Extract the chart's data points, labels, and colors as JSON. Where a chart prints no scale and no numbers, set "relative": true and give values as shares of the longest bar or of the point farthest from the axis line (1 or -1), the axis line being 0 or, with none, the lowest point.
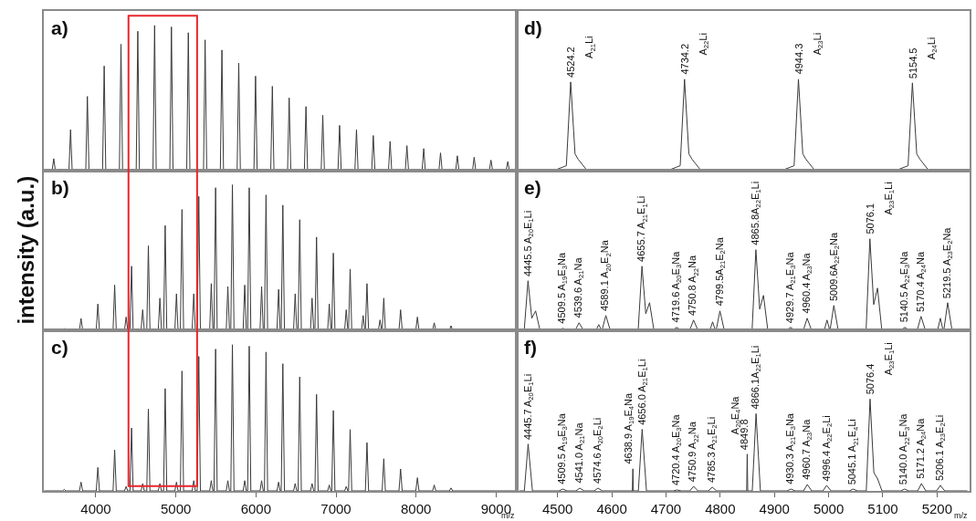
{
  "chart_data": [
    {
      "type": "line",
      "relative": true,
      "xlim": [
        3350,
        9260
      ],
      "xticks": [
        4000,
        5000,
        6000,
        7000,
        8000,
        9000
      ],
      "tick_labels": false,
      "annotations": [
        "a)"
      ],
      "x": [
        3360,
        3454,
        3474,
        3494,
        3664,
        3684,
        3704,
        3874,
        3894,
        3914,
        4084,
        4104,
        4124,
        4294,
        4314,
        4334,
        4504,
        4524,
        4544,
        4714,
        4734,
        4754,
        4924,
        4944,
        4964,
        5135,
        5155,
        5175,
        5345,
        5365,
        5385,
        5555,
        5575,
        5595,
        5765,
        5785,
        5805,
        5975,
        5995,
        6015,
        6185,
        6205,
        6225,
        6395,
        6415,
        6435,
        6605,
        6625,
        6645,
        6815,
        6835,
        6855,
        7025,
        7045,
        7065,
        7236,
        7256,
        7276,
        7446,
        7466,
        7486,
        7656,
        7676,
        7696,
        7866,
        7886,
        7906,
        8076,
        8096,
        8116,
        8286,
        8306,
        8326,
        8496,
        8516,
        8536,
        8706,
        8726,
        8746,
        8916,
        8936,
        8956,
        9126,
        9146,
        9166,
        9250
      ],
      "series": [
        {
          "color": "#3a3a3a",
          "values": [
            0,
            0,
            0.08,
            0,
            0,
            0.28,
            0,
            0,
            0.51,
            0,
            0,
            0.72,
            0,
            0,
            0.87,
            0,
            0,
            0.96,
            0,
            0,
            1,
            0,
            0,
            0.99,
            0,
            0,
            0.95,
            0,
            0,
            0.9,
            0,
            0,
            0.83,
            0,
            0,
            0.74,
            0,
            0,
            0.65,
            0,
            0,
            0.58,
            0,
            0,
            0.5,
            0,
            0,
            0.44,
            0,
            0,
            0.38,
            0,
            0,
            0.31,
            0,
            0,
            0.28,
            0,
            0,
            0.24,
            0,
            0,
            0.2,
            0,
            0,
            0.17,
            0,
            0,
            0.15,
            0,
            0,
            0.12,
            0,
            0,
            0.1,
            0,
            0,
            0.09,
            0,
            0,
            0.07,
            0,
            0,
            0.06,
            0,
            0
          ]
        }
      ]
    },
    {
      "type": "line",
      "relative": true,
      "xlim": [
        3350,
        9260
      ],
      "xticks": [
        4000,
        5000,
        6000,
        7000,
        8000,
        9000
      ],
      "tick_labels": false,
      "ylabel": "intensity (a.u.)",
      "annotations": [
        "b)"
      ],
      "x": [
        3360,
        3585,
        3605,
        3625,
        3795,
        3815,
        3835,
        4005,
        4025,
        4045,
        4215,
        4235,
        4255,
        4358,
        4378,
        4398,
        4426,
        4446,
        4466,
        4565,
        4585,
        4605,
        4636,
        4656,
        4676,
        4780,
        4800,
        4820,
        4846,
        4866,
        4886,
        4987,
        5007,
        5027,
        5056,
        5076,
        5096,
        5203,
        5223,
        5243,
        5266,
        5286,
        5306,
        5422,
        5442,
        5462,
        5476,
        5496,
        5516,
        5629,
        5649,
        5669,
        5686,
        5706,
        5726,
        5840,
        5860,
        5880,
        5896,
        5916,
        5936,
        6051,
        6071,
        6091,
        6106,
        6126,
        6146,
        6263,
        6283,
        6303,
        6316,
        6336,
        6356,
        6470,
        6490,
        6510,
        6527,
        6547,
        6567,
        6681,
        6701,
        6721,
        6737,
        6757,
        6777,
        6896,
        6916,
        6936,
        6947,
        6967,
        6987,
        7108,
        7128,
        7148,
        7157,
        7177,
        7197,
        7319,
        7339,
        7359,
        7367,
        7387,
        7407,
        7530,
        7550,
        7570,
        7577,
        7597,
        7617,
        7787,
        7807,
        7827,
        7997,
        8017,
        8037,
        8207,
        8227,
        8247,
        8417,
        8437,
        8457,
        9250
      ],
      "series": [
        {
          "color": "#3a3a3a",
          "values": [
            0,
            0,
            0.01,
            0,
            0,
            0.08,
            0,
            0,
            0.18,
            0,
            0,
            0.31,
            0,
            0,
            0.09,
            0,
            0,
            0.44,
            0,
            0,
            0.14,
            0,
            0,
            0.58,
            0,
            0,
            0.22,
            0,
            0,
            0.72,
            0,
            0,
            0.25,
            0,
            0,
            0.83,
            0,
            0,
            0.25,
            0,
            0,
            0.92,
            0,
            0,
            0.32,
            0,
            0,
            0.98,
            0,
            0,
            0.3,
            0,
            0,
            1,
            0,
            0,
            0.31,
            0,
            0,
            0.98,
            0,
            0,
            0.3,
            0,
            0,
            0.93,
            0,
            0,
            0.28,
            0,
            0,
            0.86,
            0,
            0,
            0.25,
            0,
            0,
            0.76,
            0,
            0,
            0.22,
            0,
            0,
            0.64,
            0,
            0,
            0.18,
            0,
            0,
            0.53,
            0,
            0,
            0.14,
            0,
            0,
            0.42,
            0,
            0,
            0.1,
            0,
            0,
            0.32,
            0,
            0,
            0.07,
            0,
            0,
            0.22,
            0,
            0,
            0.14,
            0,
            0,
            0.09,
            0,
            0,
            0.05,
            0,
            0,
            0.03,
            0,
            0
          ]
        }
      ]
    },
    {
      "type": "line",
      "relative": true,
      "xlim": [
        3350,
        9260
      ],
      "xticks": [
        4000,
        5000,
        6000,
        7000,
        8000,
        9000
      ],
      "tick_labels": "x",
      "xlabel": "m/z",
      "annotations": [
        "c)"
      ],
      "x": [
        3360,
        3585,
        3605,
        3625,
        3795,
        3815,
        3835,
        4005,
        4025,
        4045,
        4215,
        4235,
        4255,
        4358,
        4378,
        4398,
        4426,
        4446,
        4466,
        4565,
        4585,
        4605,
        4636,
        4656,
        4676,
        4780,
        4800,
        4820,
        4846,
        4866,
        4886,
        4987,
        5007,
        5027,
        5056,
        5076,
        5096,
        5203,
        5223,
        5243,
        5266,
        5286,
        5306,
        5422,
        5442,
        5462,
        5476,
        5496,
        5516,
        5629,
        5649,
        5669,
        5686,
        5706,
        5726,
        5840,
        5860,
        5880,
        5896,
        5916,
        5936,
        6051,
        6071,
        6091,
        6106,
        6126,
        6146,
        6263,
        6283,
        6303,
        6316,
        6336,
        6356,
        6470,
        6490,
        6510,
        6527,
        6547,
        6567,
        6681,
        6701,
        6721,
        6737,
        6757,
        6777,
        6896,
        6916,
        6936,
        6947,
        6967,
        6987,
        7108,
        7128,
        7148,
        7157,
        7177,
        7197,
        7367,
        7387,
        7407,
        7577,
        7597,
        7617,
        7787,
        7807,
        7827,
        7997,
        8017,
        8037,
        8207,
        8227,
        8247,
        8417,
        8437,
        8457,
        9250
      ],
      "series": [
        {
          "color": "#3a3a3a",
          "values": [
            0,
            0,
            0.01,
            0,
            0,
            0.06,
            0,
            0,
            0.16,
            0,
            0,
            0.28,
            0,
            0,
            0.03,
            0,
            0,
            0.43,
            0,
            0,
            0.05,
            0,
            0,
            0.56,
            0,
            0,
            0.05,
            0,
            0,
            0.7,
            0,
            0,
            0.06,
            0,
            0,
            0.82,
            0,
            0,
            0.07,
            0,
            0,
            0.92,
            0,
            0,
            0.07,
            0,
            0,
            0.97,
            0,
            0,
            0.07,
            0,
            0,
            1,
            0,
            0,
            0.07,
            0,
            0,
            0.99,
            0,
            0,
            0.07,
            0,
            0,
            0.95,
            0,
            0,
            0.06,
            0,
            0,
            0.87,
            0,
            0,
            0.05,
            0,
            0,
            0.78,
            0,
            0,
            0.05,
            0,
            0,
            0.66,
            0,
            0,
            0.04,
            0,
            0,
            0.55,
            0,
            0,
            0.03,
            0,
            0,
            0.42,
            0,
            0,
            0.33,
            0,
            0,
            0.22,
            0,
            0,
            0.15,
            0,
            0,
            0.09,
            0,
            0,
            0.04,
            0,
            0,
            0.02,
            0,
            0
          ]
        }
      ]
    },
    {
      "type": "line",
      "relative": true,
      "xlim": [
        4425,
        5260
      ],
      "xticks": [
        4500,
        4600,
        4700,
        4800,
        4900,
        5000,
        5100,
        5200
      ],
      "tick_labels": false,
      "annotations": [
        "d)",
        {
          "text": "4524.2",
          "x": 4524.2,
          "y": 0.97
        },
        {
          "text": "A$_{21}$Li",
          "x": 4524.2,
          "y": 0.97
        },
        {
          "text": "4734.2",
          "x": 4734.2,
          "y": 1
        },
        {
          "text": "A$_{22}$Li",
          "x": 4734.2,
          "y": 1
        },
        {
          "text": "4944.3",
          "x": 4944.3,
          "y": 1
        },
        {
          "text": "A$_{23}$Li",
          "x": 4944.3,
          "y": 1
        },
        {
          "text": "5154.5",
          "x": 5154.5,
          "y": 0.96
        },
        {
          "text": "A$_{24}$Li",
          "x": 5154.5,
          "y": 0.96
        }
      ],
      "x": [
        4430,
        4494.2,
        4516.2,
        4524.2,
        4532.2,
        4538.2,
        4554.2,
        4704.2,
        4726.2,
        4734.2,
        4742.2,
        4748.2,
        4764.2,
        4914.3,
        4936.3,
        4944.3,
        4952.3,
        4958.3,
        4974.3,
        5124.5,
        5146.5,
        5154.5,
        5162.5,
        5168.5,
        5184.5,
        5255
      ],
      "series": [
        {
          "color": "#3a3a3a",
          "values": [
            0,
            0,
            0.05,
            0.97,
            0.18,
            0.12,
            0,
            0,
            0.05,
            1,
            0.18,
            0.12,
            0,
            0,
            0.05,
            1,
            0.18,
            0.12,
            0,
            0,
            0.05,
            0.96,
            0.18,
            0.12,
            0,
            0
          ]
        }
      ]
    },
    {
      "type": "line",
      "relative": true,
      "xlim": [
        4425,
        5260
      ],
      "xticks": [
        4500,
        4600,
        4700,
        4800,
        4900,
        5000,
        5100,
        5200
      ],
      "tick_labels": false,
      "annotations": [
        "e)",
        {
          "text": "4445.5 A$_{20}$E$_{1}$Li",
          "x": 4445.5,
          "y": 0.54
        },
        {
          "text": "4509.5 A$_{19}$E$_{3}$Na",
          "x": 4509.5,
          "y": 0.02
        },
        {
          "text": "4539.6 A$_{21}$Na",
          "x": 4539.6,
          "y": 0.08
        },
        {
          "text": "4589.1 A$_{20}$E$_{2}$Na",
          "x": 4589.1,
          "y": 0.16
        },
        {
          "text": "4655.7 A$_{21}$E$_{1}$Li",
          "x": 4655.7,
          "y": 0.7
        },
        {
          "text": "4719.6 A$_{20}$E$_{3}$Na",
          "x": 4719.6,
          "y": 0.03
        },
        {
          "text": "4750.8 A$_{22}$Na",
          "x": 4750.8,
          "y": 0.11
        },
        {
          "text": "4799.5A$_{21}$E$_{2}$Na",
          "x": 4799.5,
          "y": 0.21
        },
        {
          "text": "4865.8A$_{22}$E$_{1}$Li",
          "x": 4865.8,
          "y": 0.88
        },
        {
          "text": "4929.7 A$_{21}$E$_{3}$Na",
          "x": 4929.7,
          "y": 0.03
        },
        {
          "text": "4960.4 A$_{23}$Na",
          "x": 4960.4,
          "y": 0.13
        },
        {
          "text": "5009.6A$_{22}$E$_{2}$Na",
          "x": 5009.6,
          "y": 0.27
        },
        {
          "text": "5076.1",
          "x": 5076.1,
          "y": 1
        },
        {
          "text": "A$_{23}$E$_{1}$Li",
          "x": 5076.1,
          "y": 1
        },
        {
          "text": "5140.5 A$_{22}$E$_{3}$Na",
          "x": 5140.5,
          "y": 0.03
        },
        {
          "text": "5170.4 A$_{24}$Na",
          "x": 5170.4,
          "y": 0.15
        },
        {
          "text": "5219.5 A$_{23}$E$_{2}$Na",
          "x": 5219.5,
          "y": 0.3
        }
      ],
      "x": [
        4430,
        4438.5,
        4445.5,
        4452.5,
        4459.5,
        4467.5,
        4503.5,
        4509.5,
        4517.5,
        4532.6,
        4539.6,
        4547.6,
        4571,
        4576,
        4581,
        4582.1,
        4589.1,
        4597.1,
        4648.7,
        4655.7,
        4662.7,
        4669.7,
        4677.7,
        4712.6,
        4719.6,
        4727.6,
        4743.8,
        4750.8,
        4758.8,
        4781,
        4786,
        4791,
        4792.5,
        4799.5,
        4807.5,
        4858.8,
        4865.8,
        4872.8,
        4879.8,
        4887.8,
        4922.7,
        4929.7,
        4937.7,
        4953.4,
        4960.4,
        4968.4,
        4992,
        4997,
        5002,
        5002.6,
        5009.6,
        5017.6,
        5069.1,
        5076.1,
        5083.1,
        5090.1,
        5098.1,
        5133.5,
        5140.5,
        5148.5,
        5163.4,
        5170.4,
        5178.4,
        5201,
        5206,
        5211,
        5212.5,
        5219.5,
        5227.5,
        5255
      ],
      "series": [
        {
          "color": "#3a3a3a",
          "values": [
            0,
            0,
            0.54,
            0.13,
            0.21,
            0,
            0,
            0.02,
            0,
            0,
            0.08,
            0,
            0,
            0.06,
            0,
            0,
            0.16,
            0,
            0,
            0.7,
            0.18,
            0.3,
            0,
            0,
            0.03,
            0,
            0,
            0.11,
            0,
            0,
            0.09,
            0,
            0,
            0.21,
            0,
            0,
            0.88,
            0.23,
            0.38,
            0,
            0,
            0.03,
            0,
            0,
            0.13,
            0,
            0,
            0.11,
            0,
            0,
            0.27,
            0,
            0,
            1,
            0.28,
            0.46,
            0,
            0,
            0.03,
            0,
            0,
            0.15,
            0,
            0,
            0.13,
            0,
            0,
            0.3,
            0,
            0
          ]
        }
      ]
    },
    {
      "type": "line",
      "relative": true,
      "xlim": [
        4425,
        5260
      ],
      "xticks": [
        4500,
        4600,
        4700,
        4800,
        4900,
        5000,
        5100,
        5200
      ],
      "tick_labels": "x",
      "xlabel": "m/z",
      "annotations": [
        "f)",
        {
          "text": "4445.7 A$_{20}$E$_{1}$Li",
          "x": 4445.7,
          "y": 0.51
        },
        {
          "text": "4509.5 A$_{19}$E$_{3}$Na",
          "x": 4509.5,
          "y": 0.02
        },
        {
          "text": "4541.0 A$_{21}$Na",
          "x": 4541.0,
          "y": 0.03
        },
        {
          "text": "4574.6 A$_{20}$E$_{2}$Li",
          "x": 4574.6,
          "y": 0.03
        },
        {
          "text": "4638.9 A$_{19}$E$_{4}$Na",
          "x": 4638.9,
          "y": 0.24
        },
        {
          "text": "4656.0 A$_{21}$E$_{1}$Li",
          "x": 4656.0,
          "y": 0.67
        },
        {
          "text": "4720.4 A$_{20}$E$_{3}$Na",
          "x": 4720.4,
          "y": 0.01
        },
        {
          "text": "4750.9 A$_{22}$Na",
          "x": 4750.9,
          "y": 0.05
        },
        {
          "text": "4785.3 A$_{21}$E$_{2}$Li",
          "x": 4785.3,
          "y": 0.04
        },
        {
          "text": "4849.8",
          "x": 4849.8,
          "y": 0.4
        },
        {
          "text": "A$_{20}$E$_{4}$Na",
          "x": 4849.8,
          "y": 0.4
        },
        {
          "text": "4866.1A$_{22}$E$_{1}$Li",
          "x": 4866.1,
          "y": 0.84
        },
        {
          "text": "4930.3 A$_{21}$E$_{3}$Na",
          "x": 4930.3,
          "y": 0.02
        },
        {
          "text": "4960.7 A$_{23}$Na",
          "x": 4960.7,
          "y": 0.07
        },
        {
          "text": "4996.4 A$_{22}$E$_{2}$Li",
          "x": 4996.4,
          "y": 0.06
        },
        {
          "text": "5045.1 A$_{21}$E$_{4}$Li",
          "x": 5045.1,
          "y": 0.02
        },
        {
          "text": "5076.4",
          "x": 5076.4,
          "y": 1
        },
        {
          "text": "A$_{23}$E$_{1}$Li",
          "x": 5076.4,
          "y": 1
        },
        {
          "text": "5140.0 A$_{22}$E$_{3}$Na",
          "x": 5140.0,
          "y": 0.02
        },
        {
          "text": "5171.2 A$_{24}$Na",
          "x": 5171.2,
          "y": 0.08
        },
        {
          "text": "5206.1 A$_{23}$E$_{2}$Li",
          "x": 5206.1,
          "y": 0.06
        }
      ],
      "x": [
        4430,
        4438.7,
        4445.7,
        4453.7,
        4502.5,
        4509.5,
        4517.5,
        4534,
        4541,
        4549,
        4567.6,
        4574.6,
        4582.6,
        4637.9,
        4638.9,
        4639.9,
        4649,
        4656,
        4664,
        4713.4,
        4720.4,
        4728.4,
        4743.9,
        4750.9,
        4758.9,
        4778.3,
        4785.3,
        4793.3,
        4848.8,
        4849.8,
        4850.8,
        4859.1,
        4866.1,
        4874.1,
        4923.3,
        4930.3,
        4938.3,
        4953.7,
        4960.7,
        4968.7,
        4989.4,
        4996.4,
        5004.4,
        5038.1,
        5045.1,
        5053.1,
        5069.4,
        5076.4,
        5083.4,
        5090.4,
        5098.4,
        5133,
        5140,
        5148,
        5164.2,
        5171.2,
        5179.2,
        5199.1,
        5206.1,
        5214.1,
        5255
      ],
      "series": [
        {
          "color": "#3a3a3a",
          "values": [
            0,
            0,
            0.51,
            0,
            0,
            0.02,
            0,
            0,
            0.03,
            0,
            0,
            0.03,
            0,
            0,
            0.24,
            0,
            0,
            0.67,
            0,
            0,
            0.01,
            0,
            0,
            0.05,
            0,
            0,
            0.04,
            0,
            0,
            0.4,
            0,
            0,
            0.84,
            0,
            0,
            0.02,
            0,
            0,
            0.07,
            0,
            0,
            0.06,
            0,
            0,
            0.02,
            0,
            0,
            1,
            0.2,
            0.13,
            0,
            0,
            0.02,
            0,
            0,
            0.08,
            0,
            0,
            0.06,
            0,
            0
          ]
        }
      ]
    }
  ]
}
